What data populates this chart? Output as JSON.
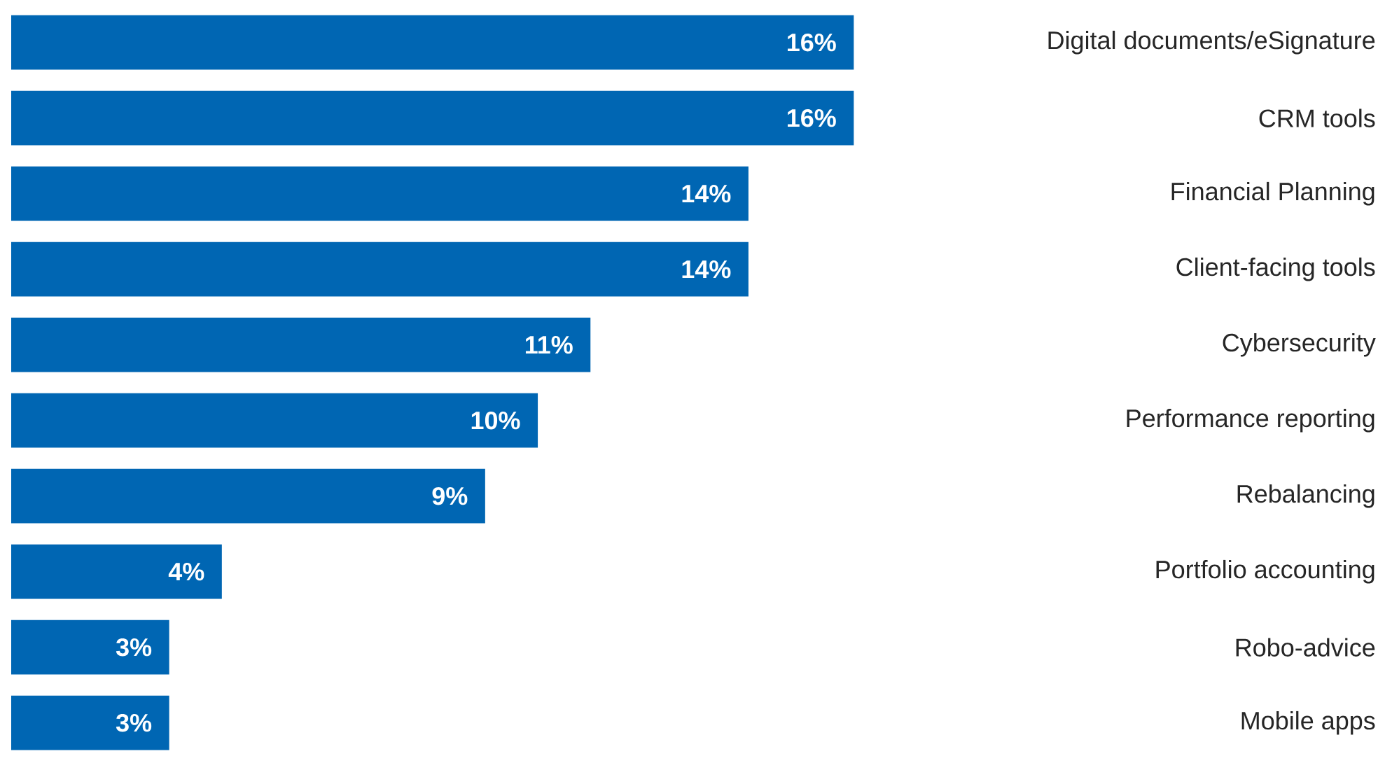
{
  "chart_data": {
    "type": "bar",
    "orientation": "horizontal",
    "categories": [
      "Digital documents/eSignature",
      "CRM tools",
      "Financial Planning",
      "Client-facing tools",
      "Cybersecurity",
      "Performance reporting",
      "Rebalancing",
      "Portfolio accounting",
      "Robo-advice",
      "Mobile apps"
    ],
    "values": [
      16,
      16,
      14,
      14,
      11,
      10,
      9,
      4,
      3,
      3
    ],
    "value_labels": [
      "16%",
      "16%",
      "14%",
      "14%",
      "11%",
      "10%",
      "9%",
      "4%",
      "3%",
      "3%"
    ],
    "color": "#0066b3"
  }
}
